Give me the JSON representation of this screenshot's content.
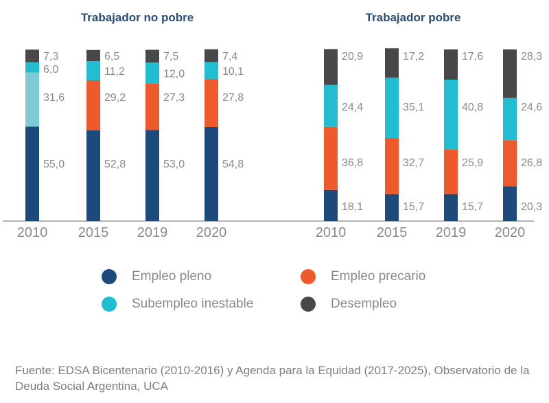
{
  "chart_data": {
    "type": "bar",
    "stacked": true,
    "categories": [
      "2010",
      "2015",
      "2019",
      "2020"
    ],
    "series_names": [
      "Empleo pleno",
      "Empleo precario",
      "Subempleo inestable",
      "Desempleo"
    ],
    "series_colors": [
      "#1c4a7a",
      "#ef5a2c",
      "#22bdd0",
      "#48484a"
    ],
    "ylim": [
      0,
      100
    ],
    "grid": false,
    "legend_position": "bottom",
    "panels": [
      {
        "title": "Trabajador no pobre",
        "series": [
          {
            "name": "Empleo pleno",
            "values": [
              55.0,
              52.8,
              53.0,
              54.8
            ],
            "labels": [
              "55,0",
              "52,8",
              "53,0",
              "54,8"
            ]
          },
          {
            "name": "Empleo precario",
            "values": [
              31.6,
              29.2,
              27.3,
              27.8
            ],
            "labels": [
              "31,6",
              "29,2",
              "27,3",
              "27,8"
            ]
          },
          {
            "name": "Subempleo inestable",
            "values": [
              6.0,
              11.2,
              12.0,
              10.1
            ],
            "labels": [
              "6,0",
              "11,2",
              "12,0",
              "10,1"
            ]
          },
          {
            "name": "Desempleo",
            "values": [
              7.3,
              6.5,
              7.5,
              7.4
            ],
            "labels": [
              "7,3",
              "6,5",
              "7,5",
              "7,4"
            ]
          }
        ],
        "segment_color_overrides": [
          {
            "series": 1,
            "category": 0,
            "color": "#7ecbd6"
          }
        ]
      },
      {
        "title": "Trabajador pobre",
        "series": [
          {
            "name": "Empleo pleno",
            "values": [
              18.1,
              15.7,
              15.7,
              20.3
            ],
            "labels": [
              "18,1",
              "15,7",
              "15,7",
              "20,3"
            ]
          },
          {
            "name": "Empleo precario",
            "values": [
              36.8,
              32.7,
              25.9,
              26.8
            ],
            "labels": [
              "36,8",
              "32,7",
              "25,9",
              "26,8"
            ]
          },
          {
            "name": "Subempleo inestable",
            "values": [
              24.4,
              35.1,
              40.8,
              24.6
            ],
            "labels": [
              "24,4",
              "35,1",
              "40,8",
              "24,6"
            ]
          },
          {
            "name": "Desempleo",
            "values": [
              20.9,
              17.2,
              17.6,
              28.3
            ],
            "labels": [
              "20,9",
              "17,2",
              "17,6",
              "28,3"
            ]
          }
        ],
        "segment_color_overrides": []
      }
    ]
  },
  "legend": {
    "items": [
      {
        "label": "Empleo pleno",
        "color": "#1c4a7a"
      },
      {
        "label": "Empleo precario",
        "color": "#ef5a2c"
      },
      {
        "label": "Subempleo inestable",
        "color": "#22bdd0"
      },
      {
        "label": "Desempleo",
        "color": "#48484a"
      }
    ]
  },
  "source": "Fuente: EDSA Bicentenario (2010-2016) y Agenda para la Equidad (2017-2025), Observatorio de la Deuda Social Argentina, UCA"
}
